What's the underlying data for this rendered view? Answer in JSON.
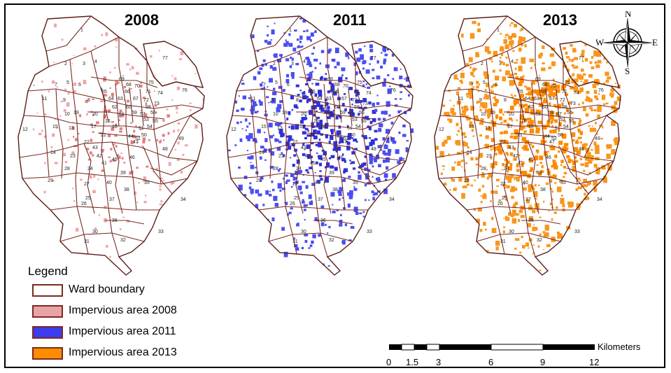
{
  "figure": {
    "panels": [
      {
        "id": "p2008",
        "year": "2008",
        "fill": "#f0a6a6",
        "fill_dense": "#e07f82",
        "density": 0.55
      },
      {
        "id": "p2011",
        "year": "2011",
        "fill": "#4a4ef0",
        "fill_dense": "#2f31d8",
        "density": 0.85
      },
      {
        "id": "p2013",
        "year": "2013",
        "fill": "#f8961e",
        "fill_dense": "#ff8a00",
        "density": 0.95
      }
    ],
    "ward_line_color": "#7b2a20",
    "ward_labels": [
      "1",
      "2",
      "3",
      "4",
      "5",
      "6",
      "7",
      "8",
      "9",
      "10",
      "11",
      "12",
      "13",
      "14",
      "15",
      "16",
      "17",
      "18",
      "19",
      "20",
      "21",
      "22",
      "23",
      "24",
      "25",
      "26",
      "27",
      "28",
      "29",
      "30",
      "31",
      "32",
      "33",
      "34",
      "35",
      "36",
      "37",
      "38",
      "39",
      "40",
      "41",
      "42",
      "43",
      "44",
      "45",
      "46",
      "47",
      "48",
      "49",
      "50",
      "51",
      "52",
      "53",
      "54",
      "55",
      "56",
      "57",
      "58",
      "59",
      "60",
      "61",
      "62",
      "63",
      "64",
      "65",
      "66",
      "67",
      "68",
      "69",
      "70",
      "71",
      "72",
      "73",
      "74",
      "75",
      "76",
      "77"
    ]
  },
  "legend": {
    "title": "Legend",
    "items": [
      {
        "label": "Ward boundary",
        "color": "#ffffff"
      },
      {
        "label": "Impervious area 2008",
        "color": "#e8a3a5"
      },
      {
        "label": "Impervious area 2011",
        "color": "#3c3cf0"
      },
      {
        "label": "Impervious area 2013",
        "color": "#ff8c00"
      }
    ]
  },
  "compass": {
    "n": "N",
    "s": "S",
    "e": "E",
    "w": "W"
  },
  "scale_bar": {
    "unit": "Kilometers",
    "ticks": [
      "0",
      "1.5",
      "3",
      "6",
      "9",
      "12"
    ]
  }
}
